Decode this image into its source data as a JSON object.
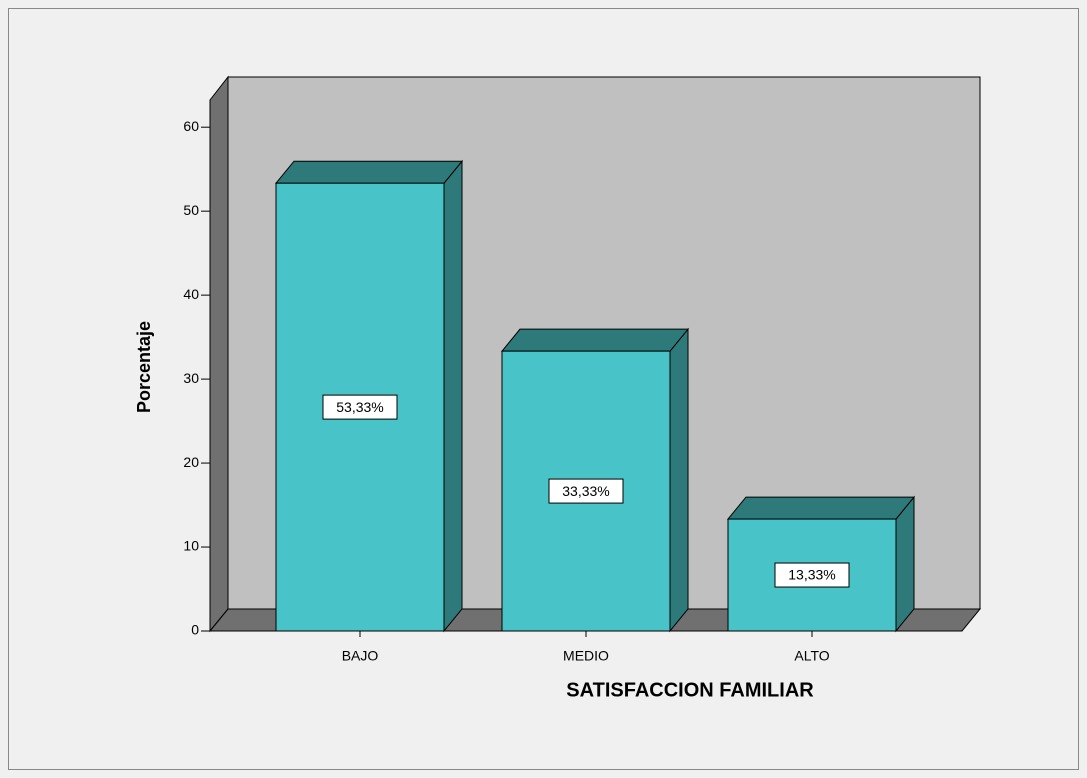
{
  "chart_data": {
    "type": "bar3d",
    "x_label": "SATISFACCION FAMILIAR",
    "y_label": "Porcentaje",
    "categories": [
      "BAJO",
      "MEDIO",
      "ALTO"
    ],
    "values": [
      53.33,
      33.33,
      13.33
    ],
    "value_labels": [
      "53,33%",
      "33,33%",
      "13,33%"
    ],
    "color": "#48c4c8",
    "ylim": [
      0,
      63
    ],
    "yticks": [
      0,
      10,
      20,
      30,
      40,
      50,
      60
    ]
  }
}
